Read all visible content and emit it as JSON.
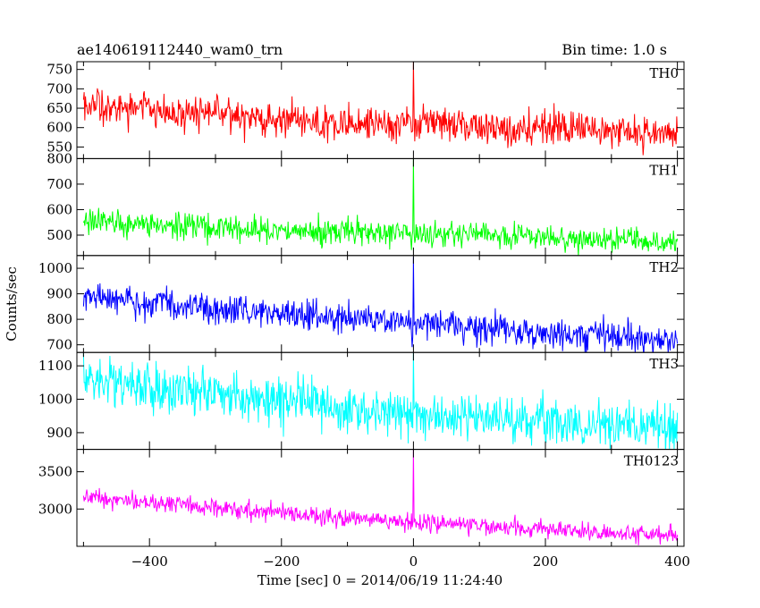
{
  "header": {
    "title": "ae140619112440_wam0_trn",
    "bin_time": "Bin time: 1.0 s"
  },
  "chart_data": {
    "type": "line",
    "xlabel": "Time [sec] 0 = 2014/06/19 11:24:40",
    "ylabel": "Counts/sec",
    "xlim": [
      -510,
      410
    ],
    "x_ticks": [
      -400,
      -200,
      0,
      200,
      400
    ],
    "x": {
      "start": -500,
      "stop": 400,
      "step": 1
    },
    "panels": [
      {
        "name": "TH0",
        "color": "#ff0000",
        "ylim": [
          520,
          770
        ],
        "y_ticks": [
          550,
          600,
          650,
          700,
          750
        ],
        "trend": [
          [
            -500,
            655
          ],
          [
            -400,
            642
          ],
          [
            -300,
            632
          ],
          [
            -200,
            620
          ],
          [
            -100,
            612
          ],
          [
            0,
            612
          ],
          [
            100,
            605
          ],
          [
            200,
            598
          ],
          [
            300,
            592
          ],
          [
            400,
            590
          ]
        ],
        "noise": 40,
        "spike": {
          "x": 0,
          "value": 770
        }
      },
      {
        "name": "TH1",
        "color": "#00ff00",
        "ylim": [
          420,
          800
        ],
        "y_ticks": [
          500,
          600,
          700,
          800
        ],
        "trend": [
          [
            -500,
            555
          ],
          [
            -400,
            540
          ],
          [
            -300,
            530
          ],
          [
            -200,
            520
          ],
          [
            -100,
            513
          ],
          [
            0,
            505
          ],
          [
            100,
            500
          ],
          [
            200,
            492
          ],
          [
            300,
            485
          ],
          [
            400,
            478
          ]
        ],
        "noise": 45,
        "spike": {
          "x": 0,
          "value": 800
        }
      },
      {
        "name": "TH2",
        "color": "#0000ff",
        "ylim": [
          670,
          1050
        ],
        "y_ticks": [
          700,
          800,
          900,
          1000
        ],
        "trend": [
          [
            -500,
            895
          ],
          [
            -400,
            868
          ],
          [
            -300,
            845
          ],
          [
            -200,
            825
          ],
          [
            -100,
            805
          ],
          [
            0,
            785
          ],
          [
            100,
            765
          ],
          [
            200,
            748
          ],
          [
            300,
            733
          ],
          [
            400,
            722
          ]
        ],
        "noise": 55,
        "spike": {
          "x": 0,
          "value": 1045
        }
      },
      {
        "name": "TH3",
        "color": "#00ffff",
        "ylim": [
          850,
          1140
        ],
        "y_ticks": [
          900,
          1000,
          1100
        ],
        "trend": [
          [
            -500,
            1055
          ],
          [
            -400,
            1038
          ],
          [
            -300,
            1015
          ],
          [
            -200,
            995
          ],
          [
            -100,
            975
          ],
          [
            0,
            955
          ],
          [
            100,
            945
          ],
          [
            200,
            935
          ],
          [
            300,
            925
          ],
          [
            400,
            918
          ]
        ],
        "noise": 65,
        "spike": {
          "x": 0,
          "value": 1140
        }
      },
      {
        "name": "TH0123",
        "color": "#ff00ff",
        "ylim": [
          2500,
          3800
        ],
        "y_ticks": [
          3000,
          3500
        ],
        "trend": [
          [
            -500,
            3150
          ],
          [
            -400,
            3090
          ],
          [
            -300,
            3020
          ],
          [
            -200,
            2950
          ],
          [
            -100,
            2880
          ],
          [
            0,
            2820
          ],
          [
            100,
            2760
          ],
          [
            200,
            2720
          ],
          [
            300,
            2690
          ],
          [
            400,
            2660
          ]
        ],
        "noise": 110,
        "spike": {
          "x": 0,
          "value": 3800
        }
      }
    ]
  }
}
